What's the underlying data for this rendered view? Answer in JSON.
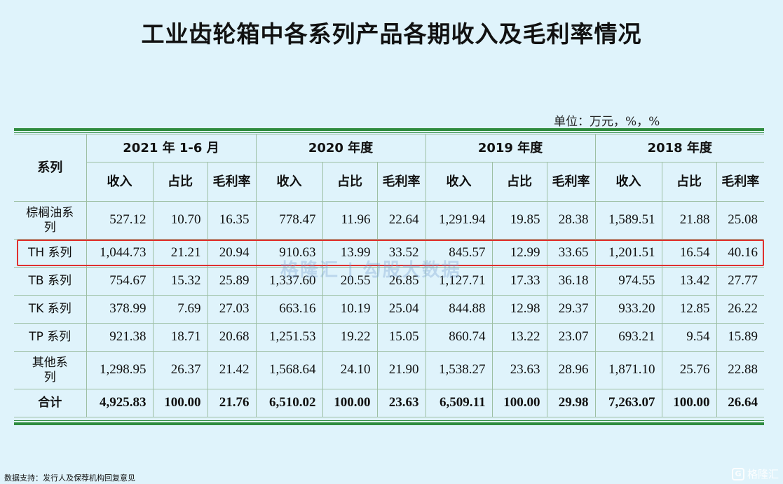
{
  "title": "工业齿轮箱中各系列产品各期收入及毛利率情况",
  "unit": "单位：万元，%，%",
  "header": {
    "series_label": "系列",
    "periods": [
      "2021 年 1-6 月",
      "2020 年度",
      "2019 年度",
      "2018 年度"
    ],
    "sub": [
      "收入",
      "占比",
      "毛利率"
    ]
  },
  "rows": [
    {
      "name": "棕榈油系列",
      "values": [
        "527.12",
        "10.70",
        "16.35",
        "778.47",
        "11.96",
        "22.64",
        "1,291.94",
        "19.85",
        "28.38",
        "1,589.51",
        "21.88",
        "25.08"
      ]
    },
    {
      "name": "TH 系列",
      "values": [
        "1,044.73",
        "21.21",
        "20.94",
        "910.63",
        "13.99",
        "33.52",
        "845.57",
        "12.99",
        "33.65",
        "1,201.51",
        "16.54",
        "40.16"
      ]
    },
    {
      "name": "TB 系列",
      "values": [
        "754.67",
        "15.32",
        "25.89",
        "1,337.60",
        "20.55",
        "26.85",
        "1,127.71",
        "17.33",
        "36.18",
        "974.55",
        "13.42",
        "27.77"
      ]
    },
    {
      "name": "TK 系列",
      "values": [
        "378.99",
        "7.69",
        "27.03",
        "663.16",
        "10.19",
        "25.04",
        "844.88",
        "12.98",
        "29.37",
        "933.20",
        "12.85",
        "26.22"
      ]
    },
    {
      "name": "TP 系列",
      "values": [
        "921.38",
        "18.71",
        "20.68",
        "1,251.53",
        "19.22",
        "15.05",
        "860.74",
        "13.22",
        "23.07",
        "693.21",
        "9.54",
        "15.89"
      ]
    },
    {
      "name": "其他系列",
      "values": [
        "1,298.95",
        "26.37",
        "21.42",
        "1,568.64",
        "24.10",
        "21.90",
        "1,538.27",
        "23.63",
        "28.96",
        "1,871.10",
        "25.76",
        "22.88"
      ]
    }
  ],
  "total": {
    "name": "合计",
    "values": [
      "4,925.83",
      "100.00",
      "21.76",
      "6,510.02",
      "100.00",
      "23.63",
      "6,509.11",
      "100.00",
      "29.98",
      "7,263.07",
      "100.00",
      "26.64"
    ]
  },
  "watermark": "格隆汇 | 勾股大数据",
  "footer_note": "数据支持：发行人及保荐机构回复意见",
  "logo": "格隆汇",
  "colors": {
    "rule": "#2e8b3e",
    "highlight": "#e0302e",
    "background": "#dff3fb"
  }
}
